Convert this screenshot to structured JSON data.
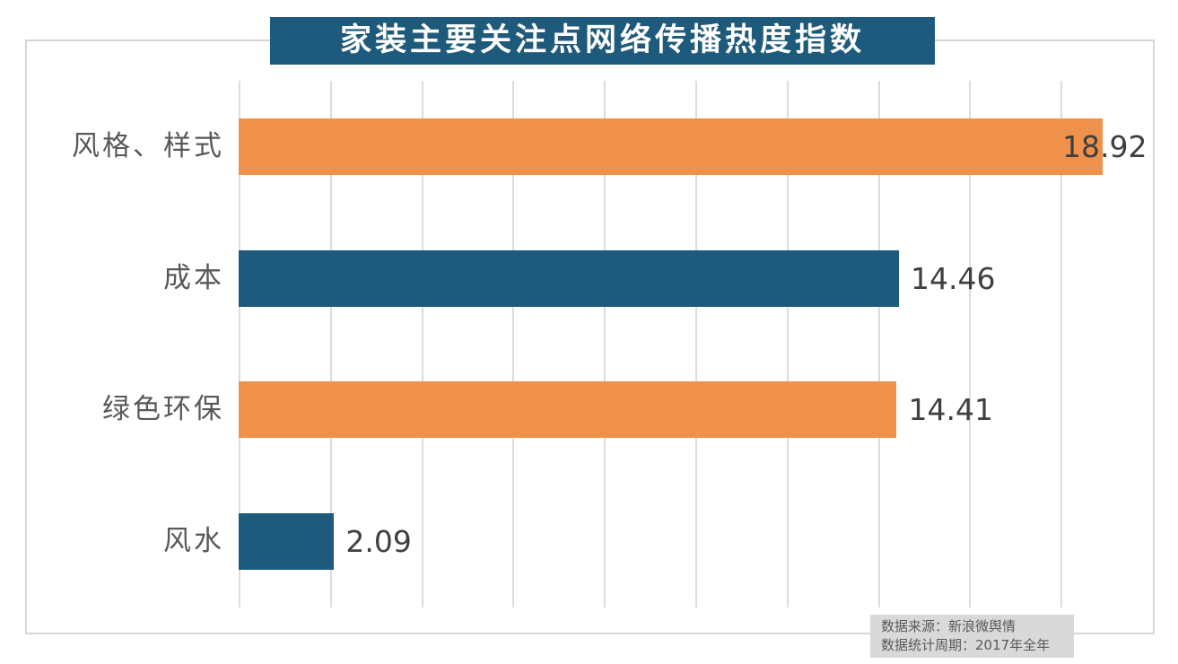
{
  "chart_data": {
    "type": "bar",
    "orientation": "horizontal",
    "title": "家装主要关注点网络传播热度指数",
    "categories": [
      "风格、样式",
      "成本",
      "绿色环保",
      "风水"
    ],
    "values": [
      18.92,
      14.46,
      14.41,
      2.09
    ],
    "value_labels": [
      "18.92",
      "14.46",
      "14.41",
      "2.09"
    ],
    "bar_colors": [
      "#F0914B",
      "#1E5A7B",
      "#F0914B",
      "#1E5A7B"
    ],
    "xlabel": "",
    "ylabel": "",
    "xlim": [
      0,
      20
    ],
    "gridline_step": 2,
    "grid": true,
    "legend": "none"
  },
  "source": {
    "line1": "数据来源：新浪微舆情",
    "line2": "数据统计周期：2017年全年"
  },
  "colors": {
    "title_bg": "#1E5A7B",
    "title_text": "#FFFFFF",
    "bar_orange": "#F0914B",
    "bar_teal": "#1E5A7B",
    "gridline": "#DCDCDC",
    "plot_border": "#D6D6D6",
    "category_text": "#595959",
    "value_text": "#3F3F3F",
    "source_bg": "#D9D9D9",
    "source_text": "#595959"
  }
}
